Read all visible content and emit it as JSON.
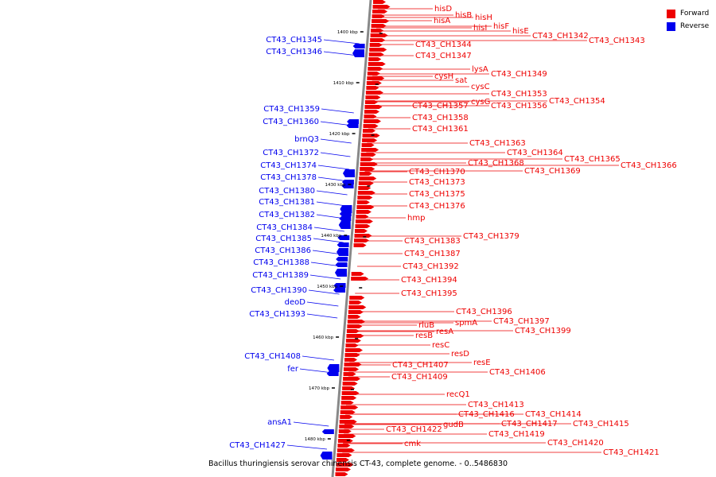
{
  "caption": "Bacillus thuringiensis serovar chinensis CT-43, complete genome. - 0..5486830",
  "legend": [
    {
      "label": "Forward",
      "color": "#ee0000"
    },
    {
      "label": "Reverse",
      "color": "#0000ee"
    }
  ],
  "colors": {
    "forward": "#ee0000",
    "reverse": "#0000ee",
    "axis": "#888888"
  },
  "scale_ticks": [
    "1400 kbp",
    "1410 kbp",
    "1420 kbp",
    "1430 kbp",
    "1440 kbp",
    "1450 kbp",
    "1460 kbp",
    "1470 kbp",
    "1480 kbp"
  ],
  "forward_labels": [
    "hisD",
    "hisB",
    "hisH",
    "hisA",
    "hisI",
    "hisF",
    "hisE",
    "CT43_CH1342",
    "CT43_CH1343",
    "CT43_CH1344",
    "CT43_CH1347",
    "lysA",
    "CT43_CH1349",
    "cysH",
    "sat",
    "cysC",
    "CT43_CH1353",
    "CT43_CH1354",
    "cysG",
    "CT43_CH1357",
    "CT43_CH1356",
    "CT43_CH1358",
    "CT43_CH1361",
    "CT43_CH1363",
    "CT43_CH1364",
    "CT43_CH1365",
    "CT43_CH1366",
    "CT43_CH1368",
    "CT43_CH1369",
    "CT43_CH1370",
    "CT43_CH1373",
    "CT43_CH1375",
    "CT43_CH1376",
    "hmp",
    "CT43_CH1379",
    "CT43_CH1383",
    "CT43_CH1387",
    "CT43_CH1392",
    "CT43_CH1394",
    "CT43_CH1395",
    "CT43_CH1396",
    "CT43_CH1397",
    "spmA",
    "rluB",
    "resA",
    "CT43_CH1399",
    "resB",
    "resC",
    "resD",
    "resE",
    "CT43_CH1407",
    "CT43_CH1406",
    "CT43_CH1409",
    "recQ1",
    "CT43_CH1413",
    "CT43_CH1416",
    "CT43_CH1414",
    "CT43_CH1417",
    "CT43_CH1415",
    "gudB",
    "CT43_CH1422",
    "CT43_CH1419",
    "CT43_CH1420",
    "cmk",
    "CT43_CH1421"
  ],
  "reverse_labels": [
    "CT43_CH1345",
    "CT43_CH1346",
    "CT43_CH1359",
    "CT43_CH1360",
    "brnQ3",
    "CT43_CH1372",
    "CT43_CH1374",
    "CT43_CH1378",
    "CT43_CH1380",
    "CT43_CH1381",
    "CT43_CH1382",
    "CT43_CH1384",
    "CT43_CH1385",
    "CT43_CH1386",
    "CT43_CH1388",
    "CT43_CH1389",
    "CT43_CH1390",
    "deoD",
    "CT43_CH1393",
    "CT43_CH1408",
    "fer",
    "ansA1",
    "CT43_CH1427"
  ]
}
